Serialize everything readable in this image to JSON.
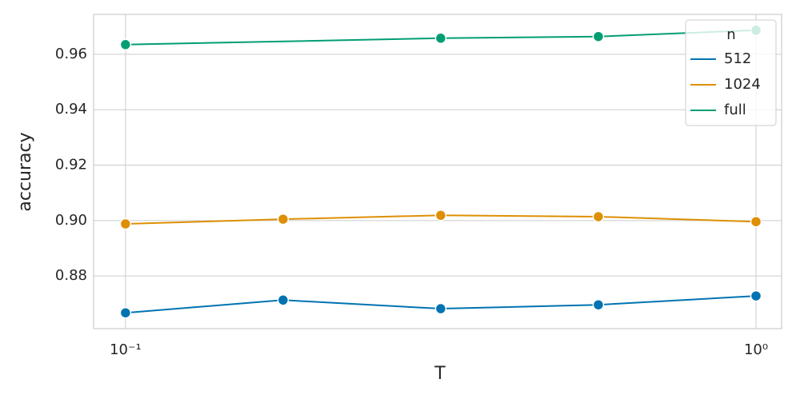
{
  "chart_data": {
    "type": "line",
    "xlabel": "T",
    "ylabel": "accuracy",
    "xscale": "log",
    "xlim": [
      0.089,
      1.098
    ],
    "ylim": [
      0.861,
      0.9744
    ],
    "xticks": [
      {
        "value": 0.1,
        "label": "10⁻¹"
      },
      {
        "value": 1,
        "label": "10⁰"
      }
    ],
    "yticks": [
      0.88,
      {
        "value": 0.9,
        "label": "0.90"
      },
      0.92,
      0.94,
      0.96
    ],
    "grid": true,
    "legend_title": "n",
    "legend_loc": "upper right",
    "series": [
      {
        "name": "512",
        "color": "#0173b2",
        "x": [
          0.1,
          0.1778,
          0.3162,
          0.5623,
          1.0
        ],
        "values": [
          0.8667,
          0.8713,
          0.8682,
          0.8696,
          0.8728
        ]
      },
      {
        "name": "1024",
        "color": "#de8f05",
        "x": [
          0.1,
          0.1778,
          0.3162,
          0.5623,
          1.0
        ],
        "values": [
          0.8988,
          0.9005,
          0.9019,
          0.9014,
          0.8996
        ]
      },
      {
        "name": "full",
        "color": "#029e73",
        "x": [
          0.1,
          0.3162,
          0.5623,
          1.0
        ],
        "values": [
          0.9635,
          0.9658,
          0.9664,
          0.9687
        ]
      }
    ]
  }
}
